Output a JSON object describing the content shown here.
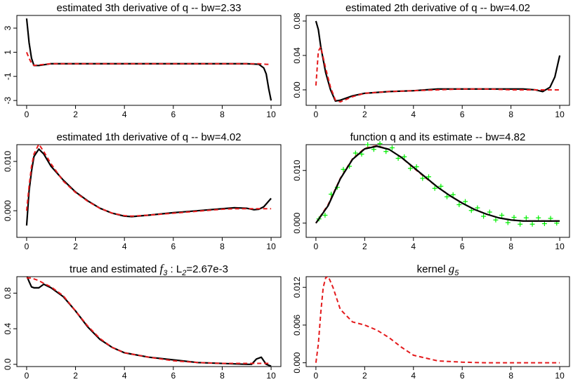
{
  "chart_data": [
    {
      "type": "line",
      "title_parts": [
        "estimated 3th derivative of q -- bw=2.33"
      ],
      "title_styles": [
        "plain"
      ],
      "x": [
        0,
        0.1,
        0.2,
        0.3,
        0.5,
        1,
        2,
        4,
        6,
        8,
        9,
        9.5,
        9.7,
        9.8,
        9.9,
        10
      ],
      "xlim": [
        -0.4,
        10.4
      ],
      "xticks": [
        0,
        2,
        4,
        6,
        8,
        10
      ],
      "ylim": [
        -3.4,
        4.05
      ],
      "yticks": [
        -3,
        -1,
        1,
        3
      ],
      "series": [
        {
          "color": "#000000",
          "style": "solid",
          "values": [
            3.8,
            1.8,
            0.5,
            -0.1,
            -0.1,
            0.05,
            0.05,
            0.05,
            0.05,
            0.05,
            0.05,
            0,
            -0.3,
            -0.8,
            -2,
            -3
          ]
        },
        {
          "color": "#e41a1c",
          "style": "dashed",
          "values": [
            1,
            0.5,
            0.1,
            -0.1,
            -0.05,
            0.05,
            0.05,
            0.05,
            0.05,
            0.05,
            0.05,
            0.05,
            0.02,
            0,
            0,
            0
          ]
        }
      ]
    },
    {
      "type": "line",
      "title_parts": [
        "estimated 2th derivative of q -- bw=4.02"
      ],
      "title_styles": [
        "plain"
      ],
      "x": [
        0,
        0.1,
        0.2,
        0.4,
        0.6,
        0.8,
        1,
        1.5,
        2,
        3,
        4,
        5,
        6,
        7,
        8,
        8.5,
        9,
        9.3,
        9.6,
        9.8,
        10
      ],
      "xlim": [
        -0.4,
        10.4
      ],
      "xticks": [
        0,
        2,
        4,
        6,
        8,
        10
      ],
      "ylim": [
        -0.018,
        0.0865
      ],
      "yticks": [
        {
          "value": 0,
          "label": "0.00"
        },
        0.04,
        0.08
      ],
      "series": [
        {
          "color": "#000000",
          "style": "solid",
          "values": [
            0.08,
            0.07,
            0.05,
            0.02,
            0.0,
            -0.013,
            -0.012,
            -0.007,
            -0.004,
            -0.002,
            -0.001,
            0.001,
            0.001,
            0.001,
            0.001,
            0.001,
            0,
            -0.002,
            0.003,
            0.015,
            0.04
          ]
        },
        {
          "color": "#e41a1c",
          "style": "dashed",
          "values": [
            0.005,
            0.045,
            0.05,
            0.025,
            0.003,
            -0.012,
            -0.014,
            -0.008,
            -0.004,
            -0.002,
            -0.001,
            0,
            0.001,
            0.001,
            0,
            0,
            0,
            0,
            0,
            0,
            0
          ]
        }
      ]
    },
    {
      "type": "line",
      "title_parts": [
        "estimated 1th derivative of q -- bw=4.02"
      ],
      "title_styles": [
        "plain"
      ],
      "x": [
        0,
        0.1,
        0.2,
        0.3,
        0.5,
        0.7,
        1,
        1.5,
        2,
        2.5,
        3,
        3.5,
        4,
        4.3,
        5,
        6,
        7,
        8,
        8.5,
        9,
        9.3,
        9.5,
        9.7,
        10
      ],
      "xlim": [
        -0.4,
        10.4
      ],
      "xticks": [
        0,
        2,
        4,
        6,
        8,
        10
      ],
      "ylim": [
        -0.0054,
        0.0134
      ],
      "yticks": [
        {
          "value": 0,
          "label": "0.000"
        },
        {
          "value": 0.01,
          "label": "0.010"
        }
      ],
      "series": [
        {
          "color": "#000000",
          "style": "solid",
          "values": [
            -0.003,
            0.004,
            0.008,
            0.011,
            0.0125,
            0.0115,
            0.009,
            0.0062,
            0.0038,
            0.002,
            0.0005,
            -0.0005,
            -0.0011,
            -0.0012,
            -0.0009,
            -0.0004,
            0,
            0.0004,
            0.0006,
            0.0005,
            0.0002,
            0.0003,
            0.0008,
            0.0025
          ]
        },
        {
          "color": "#e41a1c",
          "style": "dashed",
          "values": [
            0,
            0.005,
            0.009,
            0.0115,
            0.0135,
            0.012,
            0.0095,
            0.006,
            0.0037,
            0.0019,
            0.0005,
            -0.0005,
            -0.001,
            -0.0011,
            -0.0009,
            -0.0005,
            -0.0001,
            0.0003,
            0.0004,
            0.0004,
            0.0004,
            0.0004,
            0.0004,
            0.0004
          ]
        }
      ]
    },
    {
      "type": "line",
      "title_parts": [
        "function q and its estimate -- bw=4.82"
      ],
      "title_styles": [
        "plain"
      ],
      "x": [
        0,
        0.5,
        1,
        1.5,
        2,
        2.5,
        3,
        3.5,
        4,
        4.5,
        5,
        5.5,
        6,
        6.5,
        7,
        7.5,
        8,
        8.5,
        9,
        9.5,
        10
      ],
      "xlim": [
        -0.4,
        10.4
      ],
      "xticks": [
        0,
        2,
        4,
        6,
        8,
        10
      ],
      "ylim": [
        -0.0027,
        0.0149
      ],
      "yticks": [
        {
          "value": 0,
          "label": "0.000"
        },
        {
          "value": 0.01,
          "label": "0.010"
        }
      ],
      "series": [
        {
          "color": "#00ee00",
          "style": "plus",
          "x": [
            0.125,
            0.375,
            0.625,
            0.875,
            1.125,
            1.375,
            1.625,
            1.875,
            2.125,
            2.375,
            2.625,
            2.875,
            3.125,
            3.375,
            3.625,
            3.875,
            4.125,
            4.375,
            4.625,
            4.875,
            5.125,
            5.375,
            5.625,
            5.875,
            6.125,
            6.375,
            6.625,
            6.875,
            7.125,
            7.375,
            7.625,
            7.875,
            8.125,
            8.375,
            8.625,
            8.875,
            9.125,
            9.375,
            9.625,
            9.875
          ],
          "values": [
            0.0008,
            0.0015,
            0.0055,
            0.0068,
            0.0102,
            0.0108,
            0.0133,
            0.0131,
            0.0149,
            0.014,
            0.0151,
            0.0136,
            0.0143,
            0.0123,
            0.0126,
            0.0104,
            0.0107,
            0.0085,
            0.0088,
            0.0066,
            0.007,
            0.005,
            0.0054,
            0.0035,
            0.0041,
            0.0024,
            0.0029,
            0.0013,
            0.0021,
            0.0006,
            0.0015,
            0.0001,
            0.0011,
            -0.0002,
            0.001,
            -0.0002,
            0.001,
            -0.0001,
            0.0009,
            0.0
          ]
        },
        {
          "color": "#e41a1c",
          "style": "dashed",
          "values": [
            0,
            0.0035,
            0.0085,
            0.0122,
            0.0142,
            0.0147,
            0.014,
            0.0125,
            0.0105,
            0.0086,
            0.0068,
            0.0052,
            0.0038,
            0.0026,
            0.0017,
            0.001,
            0.0006,
            0.0004,
            0.0004,
            0.0004,
            0.0004
          ]
        },
        {
          "color": "#000000",
          "style": "solid",
          "values": [
            0,
            0.0033,
            0.0084,
            0.0121,
            0.0141,
            0.0146,
            0.014,
            0.0125,
            0.0106,
            0.0087,
            0.0068,
            0.0052,
            0.0038,
            0.0026,
            0.0017,
            0.001,
            0.0006,
            0.0004,
            0.0004,
            0.0004,
            0.0004
          ]
        }
      ]
    },
    {
      "type": "line",
      "title_parts": [
        "true and estimated ",
        "f",
        "3",
        " : L",
        "2",
        "=2.67e-3"
      ],
      "title_styles": [
        "plain",
        "math",
        "sub",
        "plain",
        "sub",
        "plain"
      ],
      "x": [
        0,
        0.1,
        0.2,
        0.3,
        0.5,
        0.7,
        1,
        1.5,
        2,
        2.5,
        3,
        3.5,
        4,
        5,
        6,
        7,
        8,
        8.5,
        9,
        9.2,
        9.4,
        9.6,
        9.8,
        10
      ],
      "xlim": [
        -0.4,
        10.4
      ],
      "xticks": [
        0,
        2,
        4,
        6,
        8,
        10
      ],
      "ylim": [
        -0.025,
        0.985
      ],
      "yticks": [
        {
          "value": 0,
          "label": "0.0"
        },
        0.4,
        0.8
      ],
      "series": [
        {
          "color": "#000000",
          "style": "solid",
          "values": [
            1.0,
            0.93,
            0.87,
            0.86,
            0.86,
            0.9,
            0.86,
            0.76,
            0.6,
            0.42,
            0.28,
            0.19,
            0.13,
            0.08,
            0.05,
            0.02,
            0.01,
            0.005,
            0.0,
            0.0,
            0.06,
            0.08,
            0.0,
            -0.02
          ]
        },
        {
          "color": "#e41a1c",
          "style": "dashed",
          "values": [
            0.97,
            0.97,
            0.97,
            0.96,
            0.94,
            0.91,
            0.87,
            0.77,
            0.6,
            0.43,
            0.29,
            0.19,
            0.13,
            0.08,
            0.04,
            0.02,
            0.01,
            0.01,
            0.01,
            0.01,
            0.01,
            0.01,
            0.01,
            0.01
          ]
        }
      ]
    },
    {
      "type": "line",
      "title_parts": [
        "kernel ",
        "g",
        "5"
      ],
      "title_styles": [
        "plain",
        "math",
        "sub"
      ],
      "x": [
        0,
        0.1,
        0.2,
        0.3,
        0.4,
        0.5,
        0.7,
        1,
        1.5,
        2,
        2.5,
        3,
        3.5,
        4,
        5,
        6,
        7,
        8,
        9,
        10
      ],
      "xlim": [
        -0.4,
        10.4
      ],
      "xticks": [
        0,
        2,
        4,
        6,
        8,
        10
      ],
      "ylim": [
        -0.0006,
        0.0137
      ],
      "yticks": [
        {
          "value": 0,
          "label": "0.000"
        },
        0.006,
        0.012
      ],
      "series": [
        {
          "color": "#e41a1c",
          "style": "dashed",
          "values": [
            0,
            0.003,
            0.008,
            0.012,
            0.0135,
            0.0138,
            0.012,
            0.0085,
            0.0065,
            0.006,
            0.0052,
            0.004,
            0.0025,
            0.0012,
            0.0003,
            0.0001,
            0,
            0,
            0,
            0
          ]
        }
      ]
    }
  ]
}
